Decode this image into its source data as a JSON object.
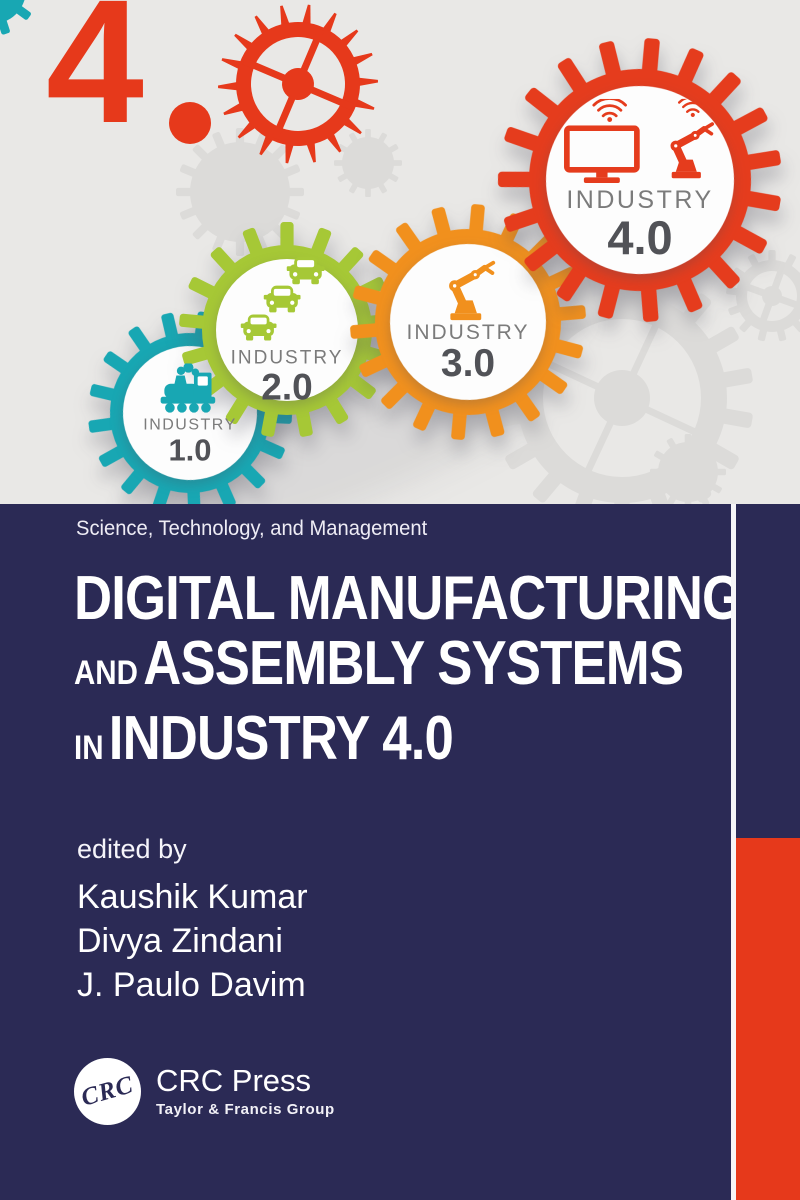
{
  "hero": {
    "headline": "4.0",
    "headline_digit": "4",
    "gears": [
      {
        "label": "INDUSTRY",
        "version": "1.0",
        "color": "#18a7b3",
        "icon": "steam-locomotive-icon"
      },
      {
        "label": "INDUSTRY",
        "version": "2.0",
        "color": "#a6c836",
        "icon": "automobiles-icon"
      },
      {
        "label": "INDUSTRY",
        "version": "3.0",
        "color": "#f1901d",
        "icon": "robot-arm-icon"
      },
      {
        "label": "INDUSTRY",
        "version": "4.0",
        "color": "#e53c1d",
        "icon": "smart-factory-icon"
      }
    ]
  },
  "cover": {
    "series_title": "Science, Technology, and Management",
    "title": {
      "line1": "DIGITAL MANUFACTURING",
      "line2_prefix": "AND",
      "line2_main": "ASSEMBLY SYSTEMS",
      "line3_prefix": "IN",
      "line3_main": "INDUSTRY 4.0"
    },
    "edited_by_label": "edited by",
    "editors": [
      "Kaushik Kumar",
      "Divya Zindani",
      "J. Paulo Davim"
    ],
    "publisher": {
      "logo_monogram": "CRC",
      "name": "CRC Press",
      "tagline": "Taylor & Francis Group"
    }
  },
  "colors": {
    "background_gray": "#e9e8e6",
    "navy": "#2b2a55",
    "accent_red": "#e6391b",
    "faint_gear_gray": "#dcdbd9",
    "industry_label_gray": "#7b7b7b",
    "version_number_gray": "#515257"
  }
}
